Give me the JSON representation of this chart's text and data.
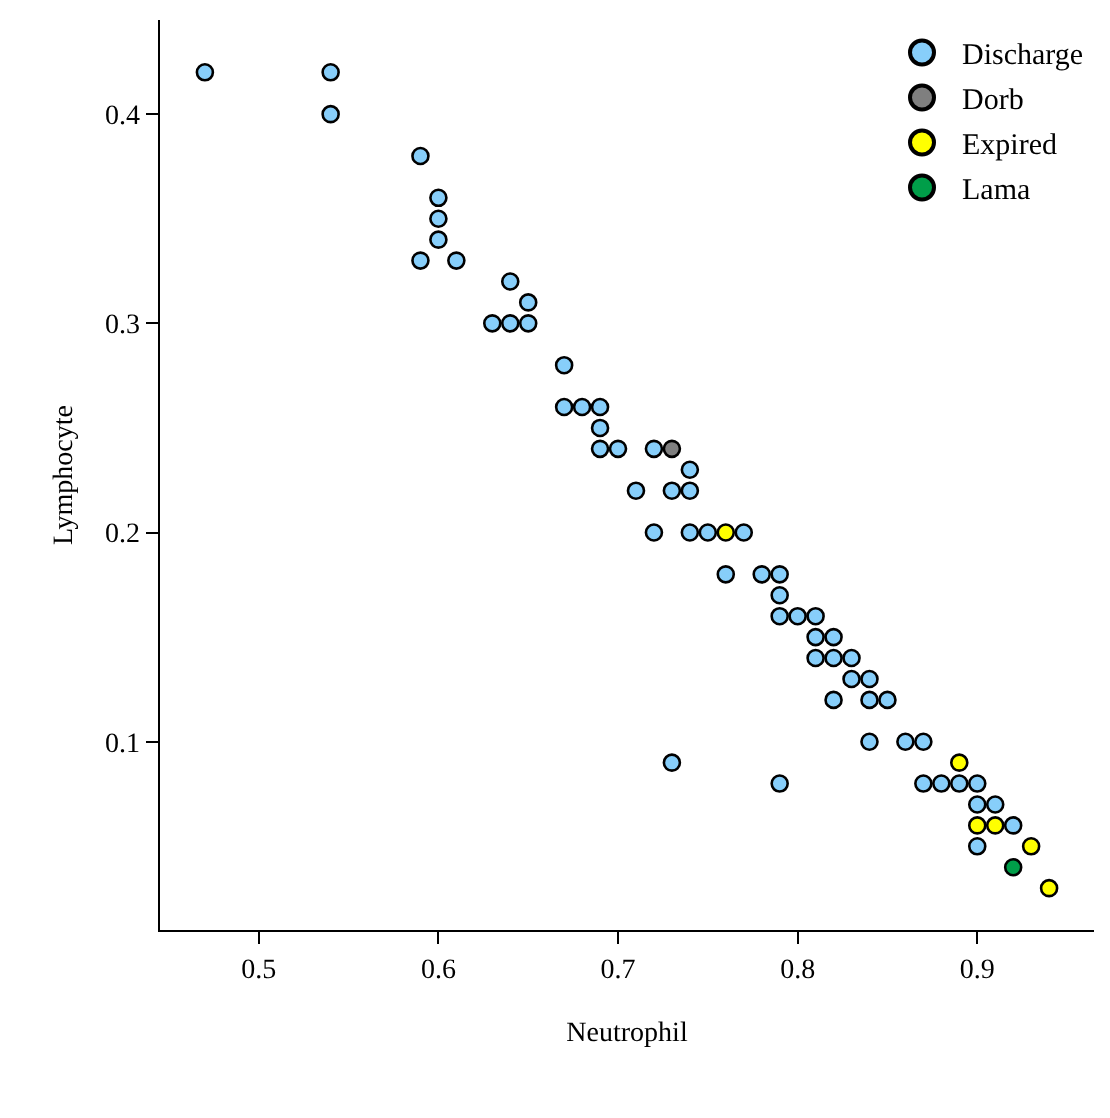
{
  "chart_data": {
    "type": "scatter",
    "xlabel": "Neutrophil",
    "ylabel": "Lymphocyte",
    "xlim": [
      0.445,
      0.965
    ],
    "ylim": [
      0.01,
      0.445
    ],
    "xticks": [
      0.5,
      0.6,
      0.7,
      0.8,
      0.9
    ],
    "yticks": [
      0.1,
      0.2,
      0.3,
      0.4
    ],
    "grid": false,
    "legend": "top right",
    "marker": "circle",
    "series": [
      {
        "name": "Discharge",
        "color": "#87cefa",
        "x": [
          0.47,
          0.54,
          0.54,
          0.59,
          0.6,
          0.6,
          0.6,
          0.59,
          0.61,
          0.64,
          0.65,
          0.63,
          0.64,
          0.65,
          0.67,
          0.67,
          0.68,
          0.69,
          0.69,
          0.69,
          0.7,
          0.72,
          0.74,
          0.71,
          0.73,
          0.74,
          0.72,
          0.74,
          0.75,
          0.77,
          0.76,
          0.78,
          0.79,
          0.79,
          0.79,
          0.8,
          0.81,
          0.81,
          0.82,
          0.81,
          0.82,
          0.83,
          0.83,
          0.84,
          0.82,
          0.84,
          0.85,
          0.84,
          0.86,
          0.87,
          0.73,
          0.79,
          0.87,
          0.88,
          0.89,
          0.9,
          0.9,
          0.91,
          0.92,
          0.9
        ],
        "values": [
          0.42,
          0.42,
          0.4,
          0.38,
          0.36,
          0.35,
          0.34,
          0.33,
          0.33,
          0.32,
          0.31,
          0.3,
          0.3,
          0.3,
          0.28,
          0.26,
          0.26,
          0.26,
          0.25,
          0.24,
          0.24,
          0.24,
          0.23,
          0.22,
          0.22,
          0.22,
          0.2,
          0.2,
          0.2,
          0.2,
          0.18,
          0.18,
          0.18,
          0.17,
          0.16,
          0.16,
          0.16,
          0.15,
          0.15,
          0.14,
          0.14,
          0.14,
          0.13,
          0.13,
          0.12,
          0.12,
          0.12,
          0.1,
          0.1,
          0.1,
          0.09,
          0.08,
          0.08,
          0.08,
          0.08,
          0.08,
          0.07,
          0.07,
          0.06,
          0.05
        ]
      },
      {
        "name": "Dorb",
        "color": "#7f7f7f",
        "x": [
          0.73
        ],
        "values": [
          0.24
        ]
      },
      {
        "name": "Expired",
        "color": "#ffff00",
        "x": [
          0.76,
          0.89,
          0.9,
          0.91,
          0.93,
          0.94
        ],
        "values": [
          0.2,
          0.09,
          0.06,
          0.06,
          0.05,
          0.03
        ]
      },
      {
        "name": "Lama",
        "color": "#009e49",
        "x": [
          0.92
        ],
        "values": [
          0.04
        ]
      }
    ]
  }
}
